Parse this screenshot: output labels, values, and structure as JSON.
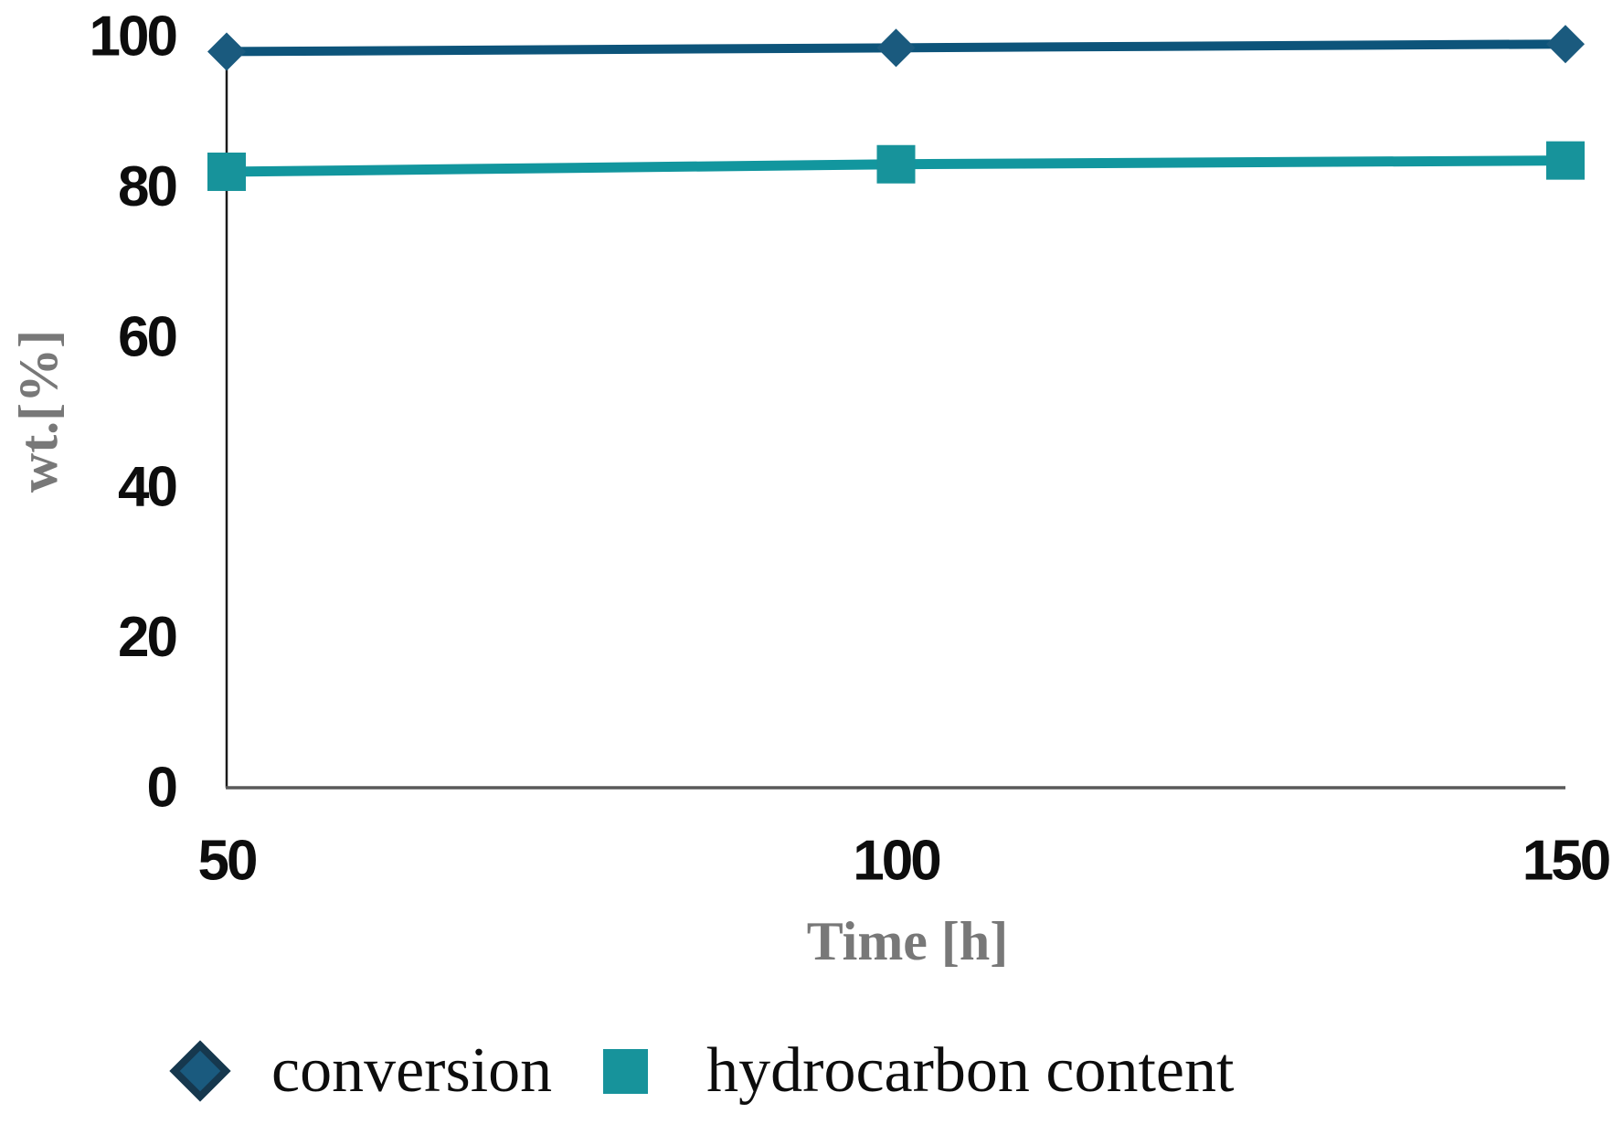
{
  "chart_data": {
    "type": "line",
    "title": "",
    "xlabel": "Time [h]",
    "ylabel": "wt.[%]",
    "x": [
      50,
      100,
      150
    ],
    "xticks": [
      "50",
      "100",
      "150"
    ],
    "yticks": [
      "0",
      "20",
      "40",
      "60",
      "80",
      "100"
    ],
    "xlim": [
      50,
      150
    ],
    "ylim": [
      0,
      100
    ],
    "grid": false,
    "legend_position": "bottom",
    "series": [
      {
        "name": "conversion",
        "marker": "diamond",
        "line_color": "#0D547A",
        "marker_color": "#1A5A7E",
        "marker_border": "#16384E",
        "values": [
          98,
          98.5,
          99
        ]
      },
      {
        "name": "hydrocarbon content",
        "marker": "square",
        "line_color": "#12969E",
        "marker_color": "#17939B",
        "marker_border": "#17939B",
        "values": [
          82,
          83,
          83.5
        ]
      }
    ],
    "axis_colors": {
      "x_axis_line": "#595959",
      "y_axis_line": "#1A1A1A",
      "tick_text": "#0D0D0D",
      "axis_title_text": "#787878"
    }
  }
}
